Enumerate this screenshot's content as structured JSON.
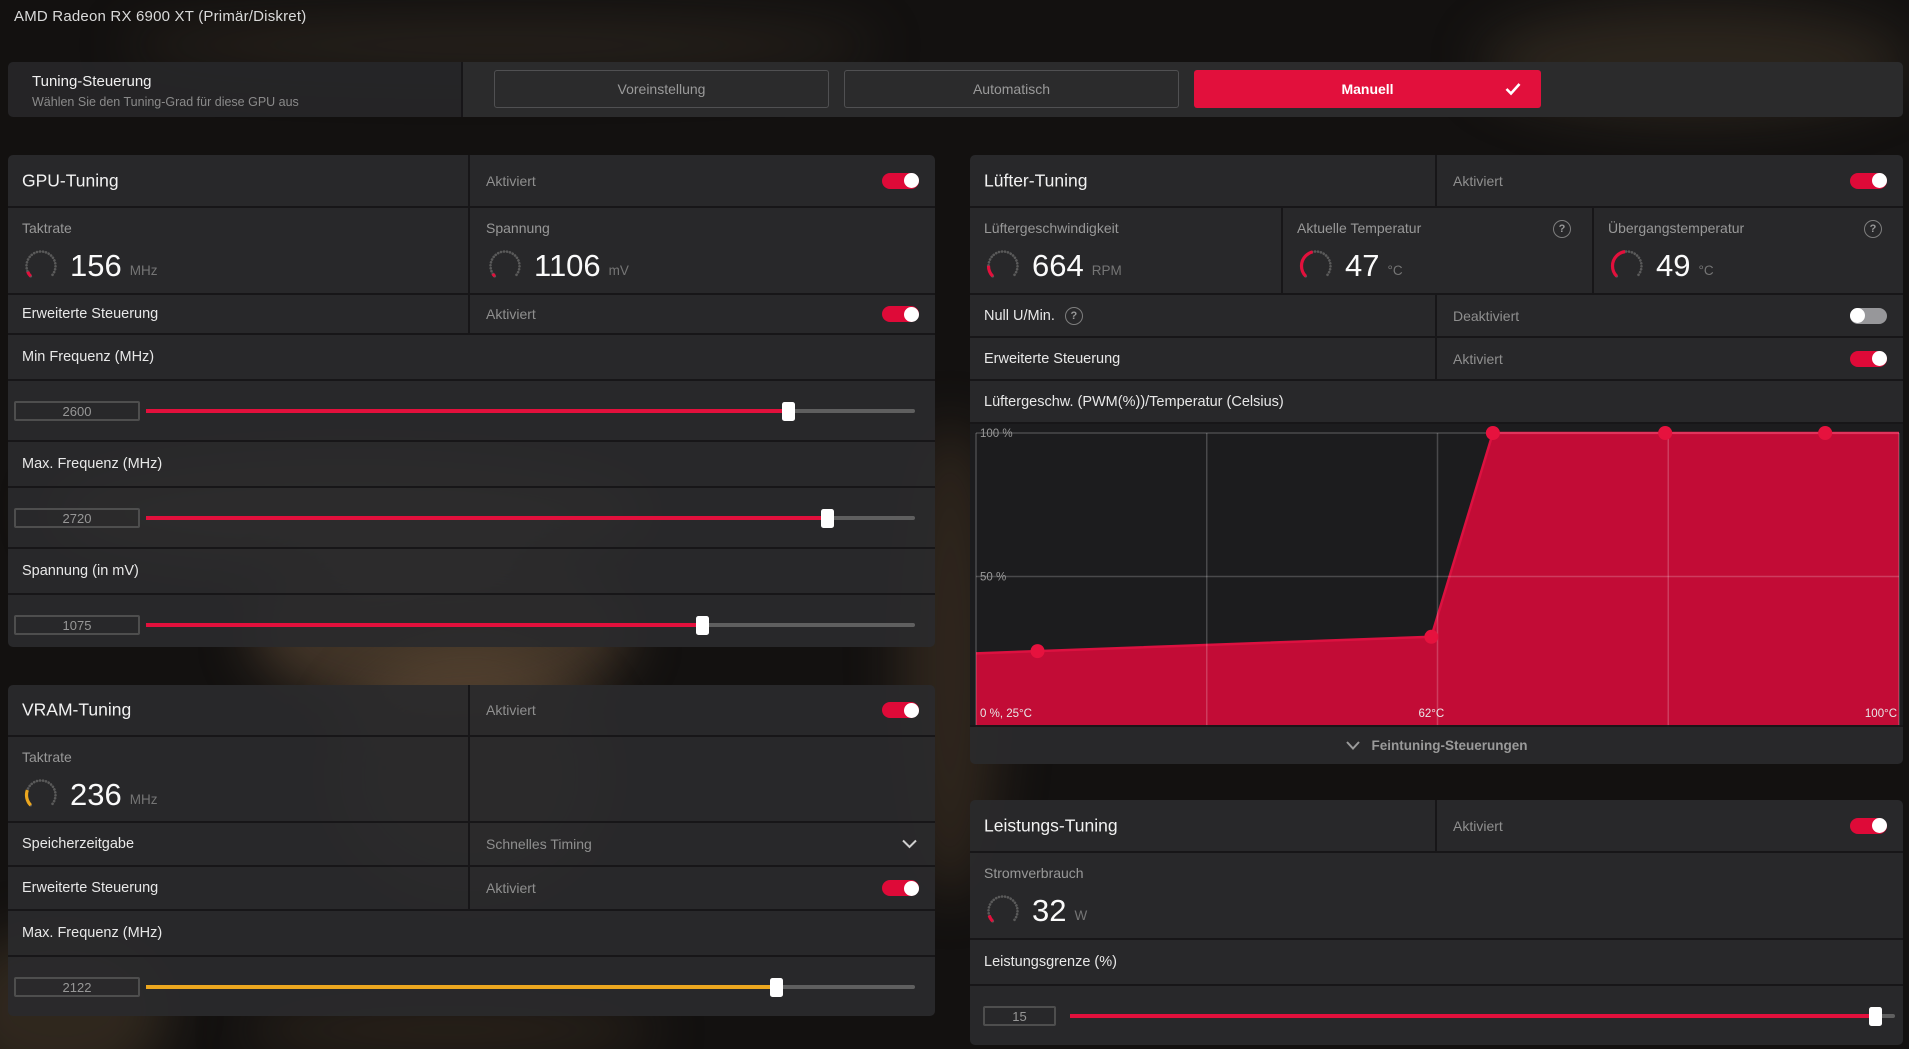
{
  "window": {
    "title": "AMD Radeon RX 6900 XT (Primär/Diskret)"
  },
  "tuning_control": {
    "title": "Tuning-Steuerung",
    "subtitle": "Wählen Sie den Tuning-Grad für diese GPU aus",
    "options": {
      "preset": "Voreinstellung",
      "automatic": "Automatisch",
      "manual": "Manuell"
    },
    "selected": "Manuell"
  },
  "gpu": {
    "title": "GPU-Tuning",
    "enabled_label": "Aktiviert",
    "clock": {
      "label": "Taktrate",
      "value": "156",
      "unit": "MHz"
    },
    "voltage": {
      "label": "Spannung",
      "value": "1106",
      "unit": "mV"
    },
    "advanced": {
      "label": "Erweiterte Steuerung",
      "state": "Aktiviert"
    },
    "min_freq": {
      "label": "Min Frequenz (MHz)",
      "value": "2600"
    },
    "max_freq": {
      "label": "Max. Frequenz (MHz)",
      "value": "2720"
    },
    "voltage_slider": {
      "label": "Spannung (in mV)",
      "value": "1075"
    }
  },
  "vram": {
    "title": "VRAM-Tuning",
    "enabled_label": "Aktiviert",
    "clock": {
      "label": "Taktrate",
      "value": "236",
      "unit": "MHz"
    },
    "timing": {
      "label": "Speicherzeitgabe",
      "value": "Schnelles Timing"
    },
    "advanced": {
      "label": "Erweiterte Steuerung",
      "state": "Aktiviert"
    },
    "max_freq": {
      "label": "Max. Frequenz (MHz)",
      "value": "2122"
    }
  },
  "fan": {
    "title": "Lüfter-Tuning",
    "enabled_label": "Aktiviert",
    "speed": {
      "label": "Lüftergeschwindigkeit",
      "value": "664",
      "unit": "RPM"
    },
    "current_temp": {
      "label": "Aktuelle Temperatur",
      "value": "47",
      "unit": "°C"
    },
    "junction_temp": {
      "label": "Übergangstemperatur",
      "value": "49",
      "unit": "°C"
    },
    "zero_rpm": {
      "label": "Null U/Min.",
      "state": "Deaktiviert"
    },
    "advanced": {
      "label": "Erweiterte Steuerung",
      "state": "Aktiviert"
    },
    "chart_title": "Lüftergeschw. (PWM(%))/Temperatur (Celsius)",
    "fine_tuning": "Feintuning-Steuerungen"
  },
  "power": {
    "title": "Leistungs-Tuning",
    "enabled_label": "Aktiviert",
    "consumption": {
      "label": "Stromverbrauch",
      "value": "32",
      "unit": "W"
    },
    "limit": {
      "label": "Leistungsgrenze (%)",
      "value": "15"
    }
  },
  "chart_data": {
    "type": "area",
    "x": [
      30,
      62,
      67,
      81,
      94
    ],
    "y": [
      24,
      29,
      100,
      100,
      100
    ],
    "xlabel": "Temperatur (Celsius)",
    "ylabel": "PWM (%)",
    "xlim": [
      25,
      100
    ],
    "ylim": [
      0,
      100
    ],
    "ytick_labels": {
      "top": "100 %",
      "mid": "50 %"
    },
    "corner_label": "0 %, 25°C",
    "mid_x_label": "62°C",
    "right_x_label": "100°C",
    "fill_color": "#c20c36",
    "line_color": "#dc1140",
    "dot_color": "#e6123e",
    "grid_on": true
  },
  "colors": {
    "accent": "#e2103c",
    "yellow": "#eca71f"
  }
}
